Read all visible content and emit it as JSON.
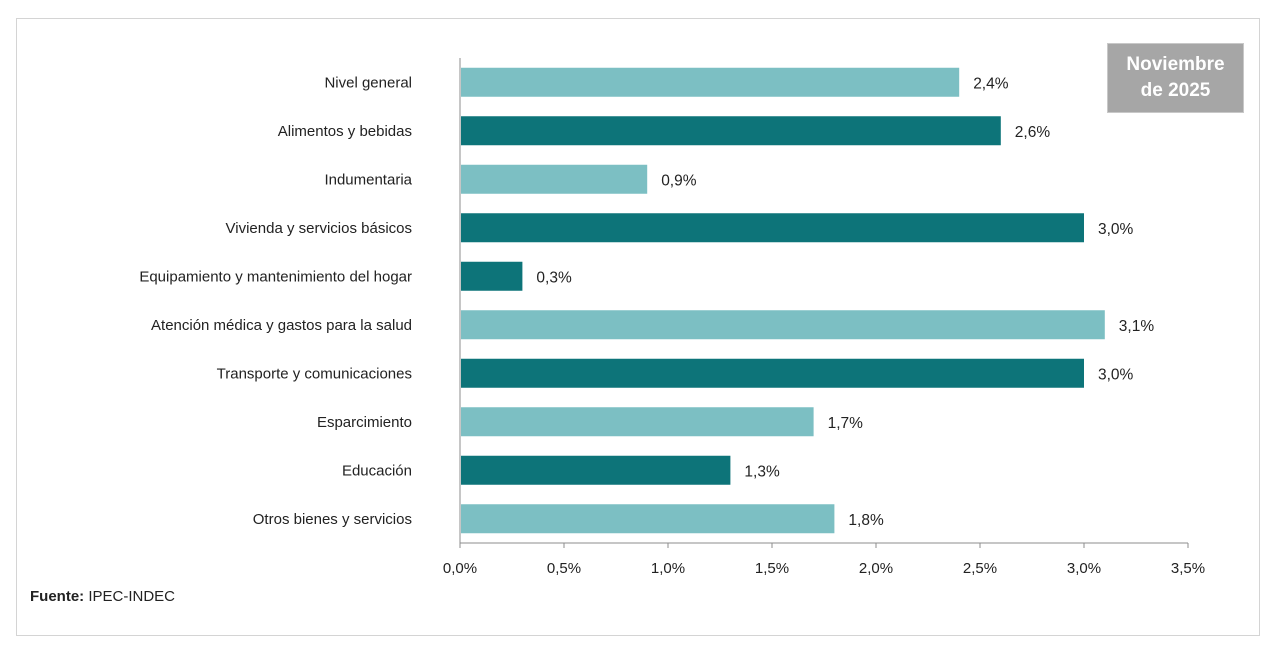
{
  "badge": {
    "text": "Noviembre\nde 2025"
  },
  "source": {
    "label": "Fuente:",
    "value": "IPEC-INDEC"
  },
  "colors": {
    "light": "#7cbfc3",
    "dark": "#0d7479",
    "axis": "#8c8c8c",
    "text": "#222222"
  },
  "chart_data": {
    "type": "bar",
    "orientation": "horizontal",
    "categories": [
      "Nivel general",
      "Alimentos y bebidas",
      "Indumentaria",
      "Vivienda y servicios básicos",
      "Equipamiento y mantenimiento del hogar",
      "Atención médica y gastos para la salud",
      "Transporte y comunicaciones",
      "Esparcimiento",
      "Educación",
      "Otros bienes y servicios"
    ],
    "values": [
      2.4,
      2.6,
      0.9,
      3.0,
      0.3,
      3.1,
      3.0,
      1.7,
      1.3,
      1.8
    ],
    "value_labels": [
      "2,4%",
      "2,6%",
      "0,9%",
      "3,0%",
      "0,3%",
      "3,1%",
      "3,0%",
      "1,7%",
      "1,3%",
      "1,8%"
    ],
    "bar_colors": [
      "light",
      "dark",
      "light",
      "dark",
      "dark",
      "light",
      "dark",
      "light",
      "dark",
      "light"
    ],
    "xlim": [
      0,
      3.5
    ],
    "xticks": [
      0,
      0.5,
      1.0,
      1.5,
      2.0,
      2.5,
      3.0,
      3.5
    ],
    "xtick_labels": [
      "0,0%",
      "0,5%",
      "1,0%",
      "1,5%",
      "2,0%",
      "2,5%",
      "3,0%",
      "3,5%"
    ],
    "grid": false,
    "legend": "none"
  }
}
